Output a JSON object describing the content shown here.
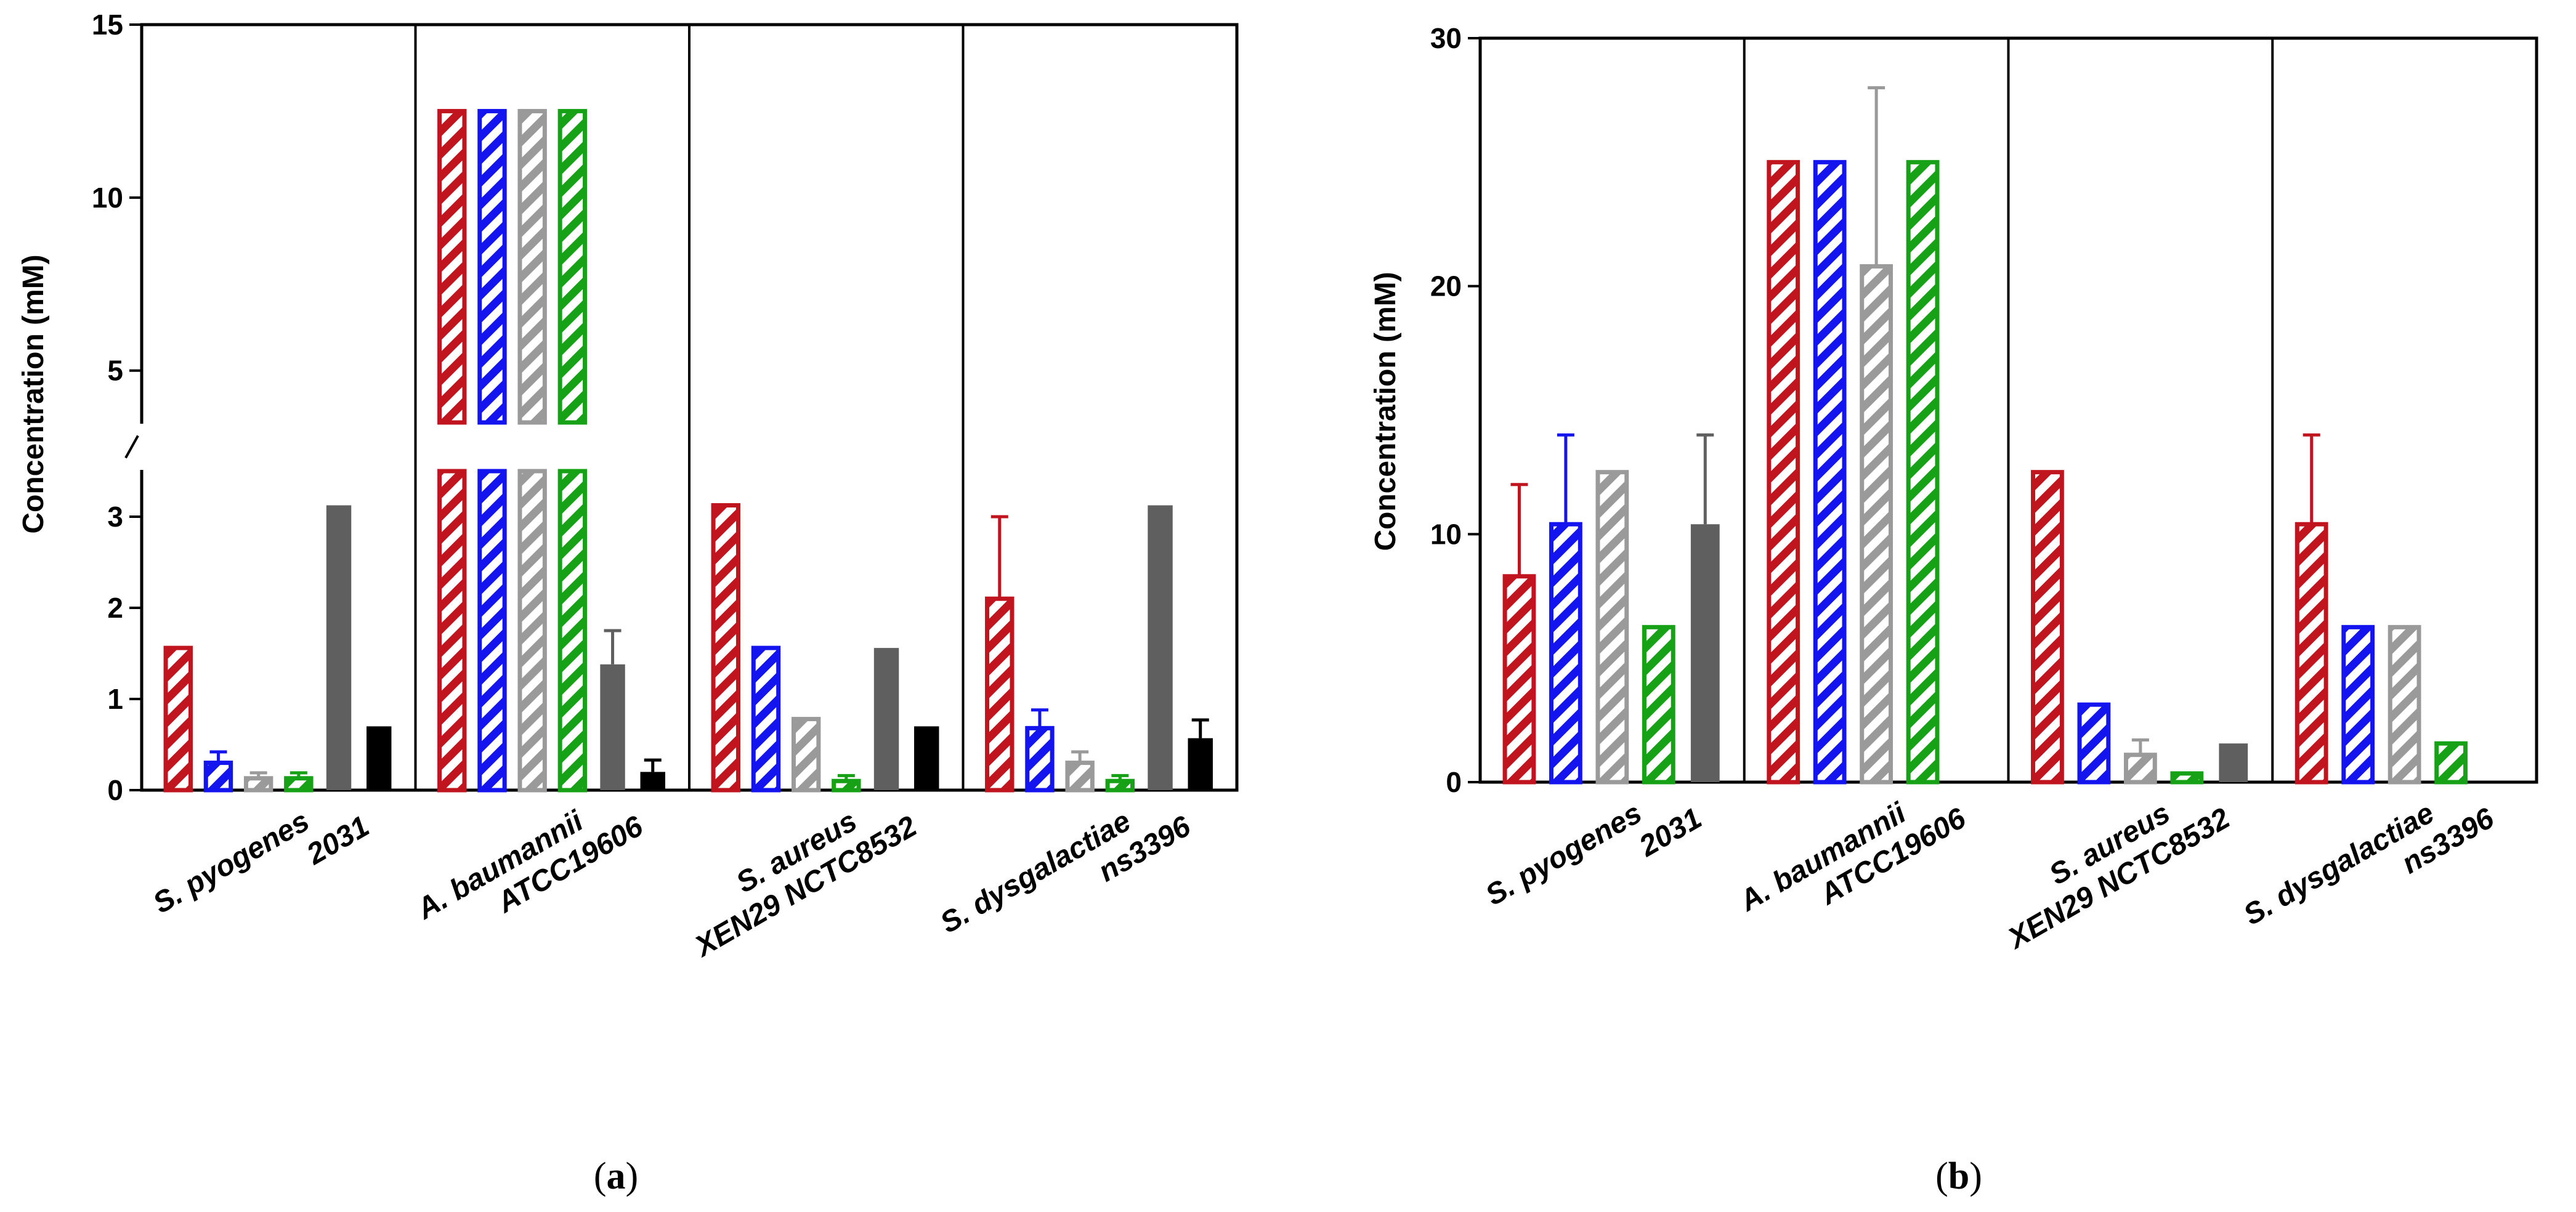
{
  "chart_data": [
    {
      "type": "bar",
      "panel_label_open": "(",
      "panel_letter": "a",
      "panel_label_close": ")",
      "ylabel": "Concentration (mM)",
      "axis_break": true,
      "ylim_lower": [
        0,
        3.5
      ],
      "ylim_upper": [
        3.5,
        15
      ],
      "yticks_lower": [
        "0",
        "1",
        "2",
        "3"
      ],
      "yticks_upper": [
        "5",
        "10",
        "15"
      ],
      "groups": [
        {
          "line1": "S. pyogenes",
          "line2": "2031"
        },
        {
          "line1": "A. baumannii",
          "line2": "ATCC19606"
        },
        {
          "line1": "S. aureus",
          "line2": "XEN29 NCTC8532"
        },
        {
          "line1": "S. dysgalactiae",
          "line2": "ns3396"
        }
      ],
      "series": [
        {
          "name": "red-hatched",
          "color": "#c0141e",
          "hatched": true,
          "values": [
            1.56,
            12.5,
            3.125,
            2.1
          ],
          "errors": [
            0,
            0,
            0,
            0.9
          ]
        },
        {
          "name": "blue-hatched",
          "color": "#1414ef",
          "hatched": true,
          "values": [
            0.3,
            12.5,
            1.56,
            0.68
          ],
          "errors": [
            0.12,
            0,
            0,
            0.2
          ]
        },
        {
          "name": "gray-hatched",
          "color": "#9a9a9a",
          "hatched": true,
          "values": [
            0.13,
            12.5,
            0.78,
            0.3
          ],
          "errors": [
            0.06,
            0,
            0,
            0.12
          ]
        },
        {
          "name": "green-hatched",
          "color": "#17a117",
          "hatched": true,
          "values": [
            0.13,
            12.5,
            0.1,
            0.1
          ],
          "errors": [
            0.06,
            0,
            0.06,
            0.06
          ]
        },
        {
          "name": "dark-gray-solid",
          "color": "#5f5f5f",
          "hatched": false,
          "values": [
            3.125,
            1.38,
            1.56,
            3.125
          ],
          "errors": [
            0,
            0.37,
            0,
            0
          ]
        },
        {
          "name": "black-solid",
          "color": "#000000",
          "hatched": false,
          "values": [
            0.7,
            0.2,
            0.7,
            0.57
          ],
          "errors": [
            0,
            0.13,
            0,
            0.2
          ]
        }
      ]
    },
    {
      "type": "bar",
      "panel_label_open": "(",
      "panel_letter": "b",
      "panel_label_close": ")",
      "ylabel": "Concentration (mM)",
      "axis_break": false,
      "ylim": [
        0,
        30
      ],
      "yticks": [
        "0",
        "10",
        "20",
        "30"
      ],
      "groups": [
        {
          "line1": "S. pyogenes",
          "line2": "2031"
        },
        {
          "line1": "A. baumannii",
          "line2": "ATCC19606"
        },
        {
          "line1": "S. aureus",
          "line2": "XEN29 NCTC8532"
        },
        {
          "line1": "S. dysgalactiae",
          "line2": "ns3396"
        }
      ],
      "series": [
        {
          "name": "red-hatched",
          "color": "#c0141e",
          "hatched": true,
          "values": [
            8.3,
            25,
            12.5,
            10.4
          ],
          "errors": [
            3.7,
            0,
            0,
            3.6
          ]
        },
        {
          "name": "blue-hatched",
          "color": "#1414ef",
          "hatched": true,
          "values": [
            10.4,
            25,
            3.125,
            6.25
          ],
          "errors": [
            3.6,
            0,
            0,
            0
          ]
        },
        {
          "name": "gray-hatched",
          "color": "#9a9a9a",
          "hatched": true,
          "values": [
            12.5,
            20.8,
            1.1,
            6.25
          ],
          "errors": [
            0,
            7.2,
            0.6,
            0
          ]
        },
        {
          "name": "green-hatched",
          "color": "#17a117",
          "hatched": true,
          "values": [
            6.25,
            25,
            0.35,
            1.56
          ],
          "errors": [
            0,
            0,
            0,
            0
          ]
        },
        {
          "name": "dark-gray-solid",
          "color": "#5f5f5f",
          "hatched": false,
          "values": [
            10.4,
            null,
            1.56,
            null
          ],
          "errors": [
            3.6,
            0,
            0,
            0
          ]
        }
      ]
    }
  ]
}
